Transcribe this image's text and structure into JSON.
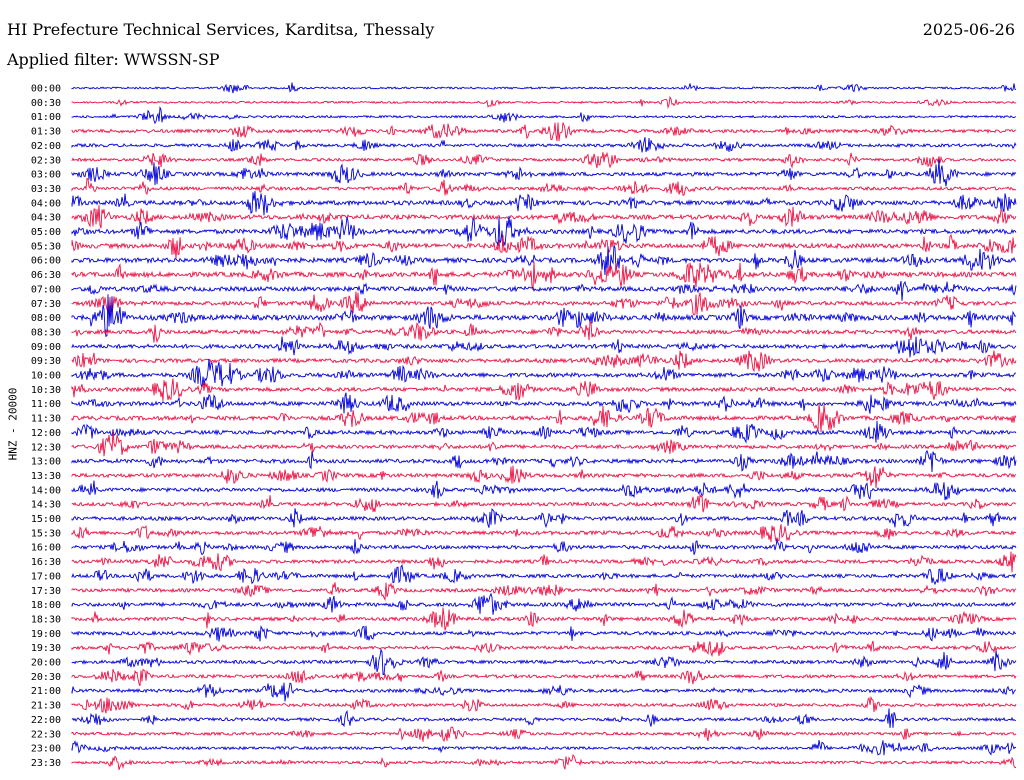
{
  "header": {
    "title": "HI Prefecture Technical Services, Karditsa, Thessaly",
    "date": "2025-06-26",
    "filter": "Applied filter: WWSSN-SP"
  },
  "colors": {
    "trace_a": "#0000dd",
    "trace_b": "#ee1144"
  },
  "chart_data": {
    "type": "line",
    "title": "HI Prefecture Technical Services, Karditsa, Thessaly",
    "ylabel": "HNZ - 20000",
    "xlabel": "",
    "legend": "none",
    "grid": false,
    "categories": [
      "00:00",
      "00:30",
      "01:00",
      "01:30",
      "02:00",
      "02:30",
      "03:00",
      "03:30",
      "04:00",
      "04:30",
      "05:00",
      "05:30",
      "06:00",
      "06:30",
      "07:00",
      "07:30",
      "08:00",
      "08:30",
      "09:00",
      "09:30",
      "10:00",
      "10:30",
      "11:00",
      "11:30",
      "12:00",
      "12:30",
      "13:00",
      "13:30",
      "14:00",
      "14:30",
      "15:00",
      "15:30",
      "16:00",
      "16:30",
      "17:00",
      "17:30",
      "18:00",
      "18:30",
      "19:00",
      "19:30",
      "20:00",
      "20:30",
      "21:00",
      "21:30",
      "22:00",
      "22:30",
      "23:00",
      "23:30"
    ],
    "row_activity": [
      0.15,
      0.15,
      0.2,
      0.45,
      0.4,
      0.35,
      0.55,
      0.45,
      0.7,
      0.7,
      0.7,
      0.75,
      0.75,
      0.8,
      0.7,
      0.6,
      0.85,
      0.6,
      0.6,
      0.6,
      0.65,
      0.6,
      0.65,
      0.65,
      0.6,
      0.55,
      0.6,
      0.55,
      0.55,
      0.5,
      0.55,
      0.55,
      0.5,
      0.5,
      0.5,
      0.5,
      0.55,
      0.5,
      0.5,
      0.45,
      0.45,
      0.45,
      0.45,
      0.4,
      0.4,
      0.35,
      0.35,
      0.35
    ]
  }
}
